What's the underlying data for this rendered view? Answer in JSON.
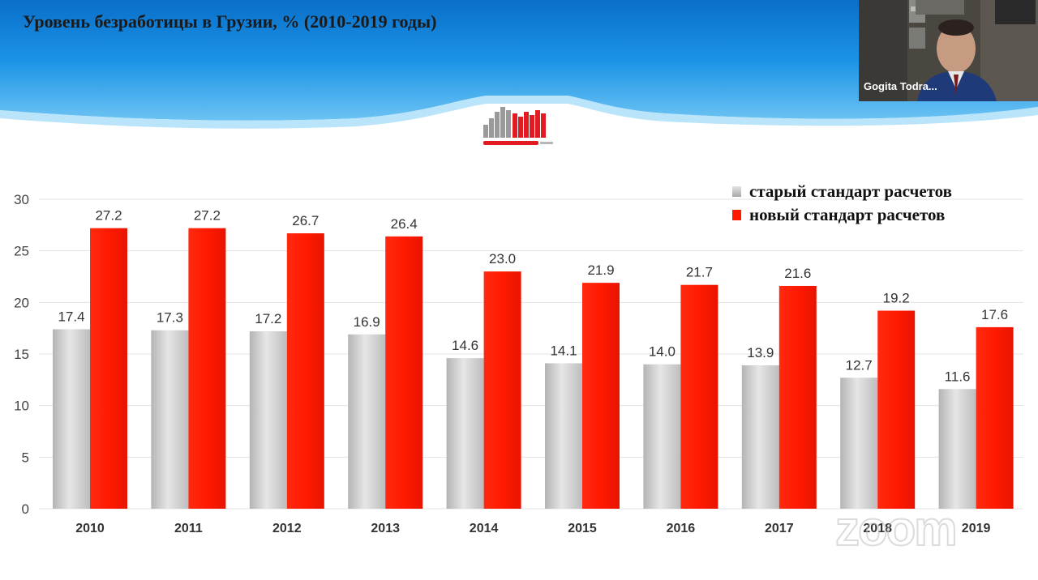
{
  "slide": {
    "title": "Уровень безработицы в Грузии, % (2010-2019 годы)"
  },
  "logo": {
    "icon": "geostat-logo"
  },
  "video": {
    "participant_name": "Gogita Todra..."
  },
  "watermark": {
    "text": "zoom"
  },
  "colors": {
    "old_series": "#c8c8c8",
    "new_series": "#ff1a00",
    "header_blue": "#1a8fe0"
  },
  "chart_data": {
    "type": "bar",
    "title": "",
    "xlabel": "",
    "ylabel": "",
    "ylim": [
      0,
      30
    ],
    "yticks": [
      0,
      5,
      10,
      15,
      20,
      25,
      30
    ],
    "grid": true,
    "legend_position": "top-right",
    "categories": [
      "2010",
      "2011",
      "2012",
      "2013",
      "2014",
      "2015",
      "2016",
      "2017",
      "2018",
      "2019"
    ],
    "series": [
      {
        "name": "старый стандарт расчетов",
        "color": "#c8c8c8",
        "values": [
          17.4,
          17.3,
          17.2,
          16.9,
          14.6,
          14.1,
          14.0,
          13.9,
          12.7,
          11.6
        ],
        "labels": [
          "17.4",
          "17.3",
          "17.2",
          "16.9",
          "14.6",
          "14.1",
          "14.0",
          "13.9",
          "12.7",
          "11.6"
        ]
      },
      {
        "name": "новый стандарт расчетов",
        "color": "#ff1a00",
        "values": [
          27.2,
          27.2,
          26.7,
          26.4,
          23.0,
          21.9,
          21.7,
          21.6,
          19.2,
          17.6
        ],
        "labels": [
          "27.2",
          "27.2",
          "26.7",
          "26.4",
          "23.0",
          "21.9",
          "21.7",
          "21.6",
          "19.2",
          "17.6"
        ]
      }
    ]
  }
}
